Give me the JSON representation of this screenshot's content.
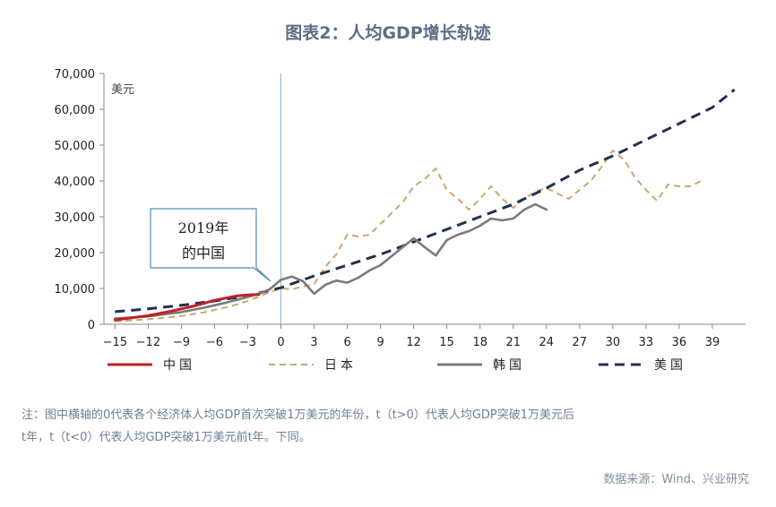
{
  "chart_data": {
    "type": "line",
    "title": "图表2：人均GDP增长轨迹",
    "ylabel": "美元",
    "xlabel": "",
    "ylim": [
      0,
      70000
    ],
    "xlim": [
      -16,
      42
    ],
    "y_ticks": [
      0,
      10000,
      20000,
      30000,
      40000,
      50000,
      60000,
      70000
    ],
    "y_tick_labels": [
      "0",
      "10,000",
      "20,000",
      "30,000",
      "40,000",
      "50,000",
      "60,000",
      "70,000"
    ],
    "x_ticks": [
      -15,
      -12,
      -9,
      -6,
      -3,
      0,
      3,
      6,
      9,
      12,
      15,
      18,
      21,
      24,
      27,
      30,
      33,
      36,
      39
    ],
    "x_tick_labels": [
      "−15",
      "−12",
      "−9",
      "−6",
      "−3",
      "0",
      "3",
      "6",
      "9",
      "12",
      "15",
      "18",
      "21",
      "24",
      "27",
      "30",
      "33",
      "36",
      "39"
    ],
    "reference_line_x": 0,
    "series": [
      {
        "name": "中国",
        "color": "#c0202a",
        "style": "solid",
        "x": [
          -15,
          -14,
          -13,
          -12,
          -11,
          -10,
          -9,
          -8,
          -7,
          -6,
          -5,
          -4,
          -3,
          -2
        ],
        "values": [
          1200,
          1600,
          2000,
          2400,
          3000,
          3600,
          4300,
          5000,
          5800,
          6700,
          7300,
          7900,
          8200,
          8300
        ]
      },
      {
        "name": "日本",
        "color": "#c9a86a",
        "style": "dash",
        "x": [
          -15,
          -14,
          -13,
          -12,
          -11,
          -10,
          -9,
          -8,
          -7,
          -6,
          -5,
          -4,
          -3,
          -2,
          -1,
          0,
          1,
          2,
          3,
          4,
          5,
          6,
          7,
          8,
          9,
          10,
          11,
          12,
          13,
          14,
          15,
          16,
          17,
          18,
          19,
          20,
          21,
          22,
          23,
          24,
          25,
          26,
          27,
          28,
          29,
          30,
          31,
          32,
          33,
          34,
          35,
          36,
          37,
          38
        ],
        "values": [
          800,
          1000,
          1200,
          1400,
          1700,
          2000,
          2300,
          2800,
          3300,
          4000,
          4700,
          5500,
          6500,
          7700,
          9000,
          10000,
          9800,
          10500,
          11200,
          16000,
          19500,
          25000,
          24500,
          25000,
          28000,
          31000,
          34000,
          38500,
          40500,
          43500,
          37500,
          35000,
          32000,
          35000,
          38500,
          35000,
          32500,
          35000,
          37000,
          38000,
          36500,
          35000,
          37500,
          40000,
          44000,
          48500,
          46000,
          41000,
          37500,
          34500,
          39000,
          38500,
          38500,
          40000
        ]
      },
      {
        "name": "韩国",
        "color": "#7a7a7a",
        "style": "solid",
        "x": [
          -15,
          -14,
          -13,
          -12,
          -11,
          -10,
          -9,
          -8,
          -7,
          -6,
          -5,
          -4,
          -3,
          -2,
          -1,
          0,
          1,
          2,
          3,
          4,
          5,
          6,
          7,
          8,
          9,
          10,
          11,
          12,
          13,
          14,
          15,
          16,
          17,
          18,
          19,
          20,
          21,
          22,
          23,
          24
        ],
        "values": [
          1600,
          1800,
          2000,
          2200,
          2600,
          3000,
          3400,
          4000,
          4600,
          5300,
          6000,
          6800,
          7600,
          8500,
          9800,
          12400,
          13300,
          12000,
          8500,
          11000,
          12200,
          11600,
          13000,
          15000,
          16500,
          19000,
          21500,
          24000,
          21500,
          19200,
          23500,
          25000,
          26000,
          27500,
          29500,
          29000,
          29500,
          32000,
          33500,
          32000
        ]
      },
      {
        "name": "美国",
        "color": "#1f3352",
        "style": "dash",
        "x": [
          -15,
          -12,
          -9,
          -6,
          -3,
          0,
          3,
          6,
          9,
          12,
          15,
          18,
          21,
          24,
          27,
          30,
          33,
          36,
          39,
          41
        ],
        "values": [
          3500,
          4300,
          5300,
          6500,
          8000,
          10200,
          13500,
          16500,
          19500,
          23000,
          26500,
          30000,
          33500,
          38000,
          43000,
          47000,
          51500,
          56000,
          60500,
          65500
        ]
      }
    ]
  },
  "chart_labels": {
    "unit": "美元",
    "annotation_line1": "2019年",
    "annotation_line2": "的中国"
  },
  "notes": {
    "line1": "注：图中横轴的0代表各个经济体人均GDP首次突破1万美元的年份，t（t>0）代表人均GDP突破1万美元后",
    "line2": "t年，t（t<0）代表人均GDP突破1万美元前t年。下同。"
  },
  "source": "数据来源：Wind、兴业研究"
}
